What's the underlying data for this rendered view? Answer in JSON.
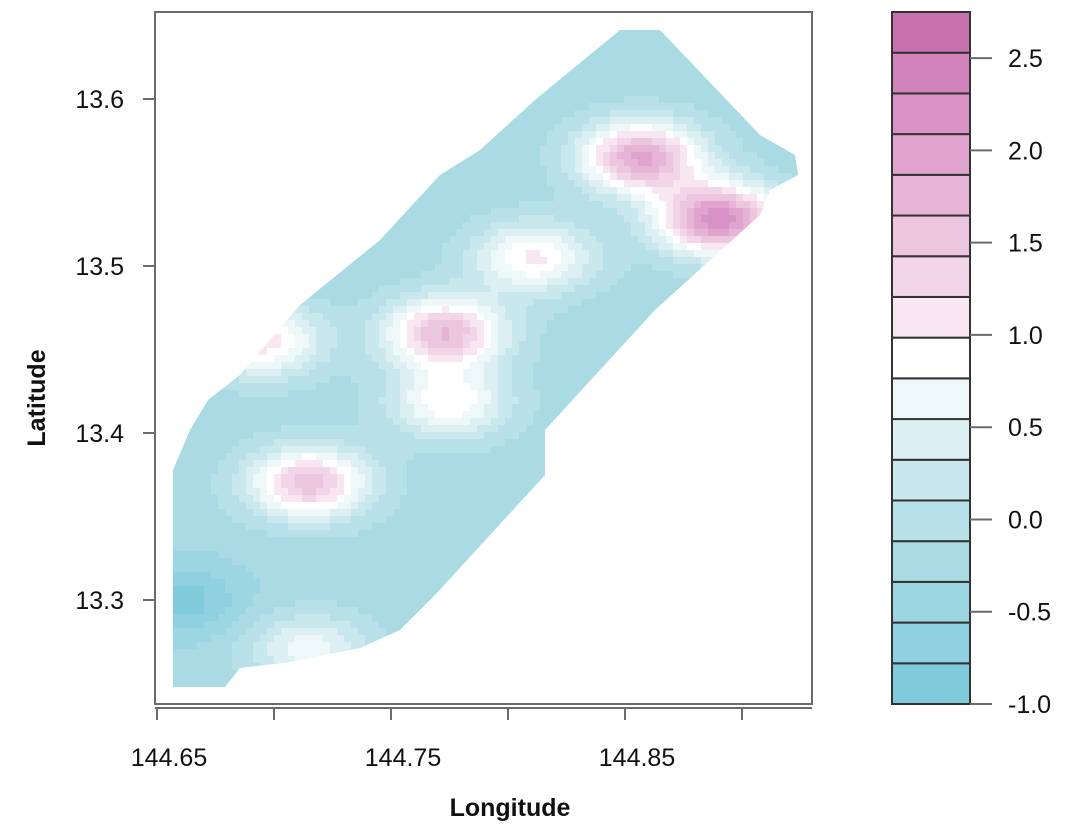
{
  "chart_data": {
    "type": "heatmap",
    "xlabel": "Longitude",
    "ylabel": "Latitude",
    "xlim": [
      144.648,
      144.9
    ],
    "ylim": [
      13.24,
      13.65
    ],
    "x_ticks": [
      144.65,
      144.7,
      144.75,
      144.8,
      144.85,
      144.9
    ],
    "x_tick_labels": [
      "144.65",
      "",
      "144.75",
      "",
      "144.85",
      ""
    ],
    "y_ticks": [
      13.3,
      13.4,
      13.5,
      13.6
    ],
    "y_tick_labels": [
      "13.3",
      "13.4",
      "13.5",
      "13.6"
    ],
    "colorbar": {
      "range": [
        -1.0,
        2.75
      ],
      "levels": [
        -1.0,
        -0.75,
        -0.5,
        -0.25,
        0.0,
        0.25,
        0.5,
        0.75,
        1.0,
        1.25,
        1.5,
        1.75,
        2.0,
        2.25,
        2.5,
        2.75
      ],
      "colors": [
        "#7fcadb",
        "#8fd1e0",
        "#9dd6e3",
        "#aadbe5",
        "#b8e0e8",
        "#c9e8ed",
        "#dceff2",
        "#eef8f9",
        "#ffffff",
        "#f8e6f0",
        "#f2d5e8",
        "#ecc5df",
        "#e6b4d6",
        "#dfa3cd",
        "#d992c5",
        "#d283bb",
        "#c672ae"
      ],
      "tick_values": [
        -1.0,
        -0.5,
        0.0,
        0.5,
        1.0,
        1.5,
        2.0,
        2.5
      ],
      "tick_labels": [
        "-1.0",
        "-0.5",
        "0.0",
        "0.5",
        "1.0",
        "1.5",
        "2.0",
        "2.5"
      ]
    },
    "field": {
      "background_value": -0.15,
      "anomalies": [
        {
          "lon": 144.857,
          "lat": 13.565,
          "value": 2.3
        },
        {
          "lon": 144.89,
          "lat": 13.528,
          "value": 2.7
        },
        {
          "lon": 144.811,
          "lat": 13.505,
          "value": 1.3
        },
        {
          "lon": 144.773,
          "lat": 13.46,
          "value": 2.0
        },
        {
          "lon": 144.775,
          "lat": 13.418,
          "value": 1.2
        },
        {
          "lon": 144.715,
          "lat": 13.37,
          "value": 1.9
        },
        {
          "lon": 144.695,
          "lat": 13.455,
          "value": 1.4
        },
        {
          "lon": 144.66,
          "lat": 13.3,
          "value": -0.9
        },
        {
          "lon": 144.715,
          "lat": 13.27,
          "value": 0.9
        }
      ]
    }
  }
}
